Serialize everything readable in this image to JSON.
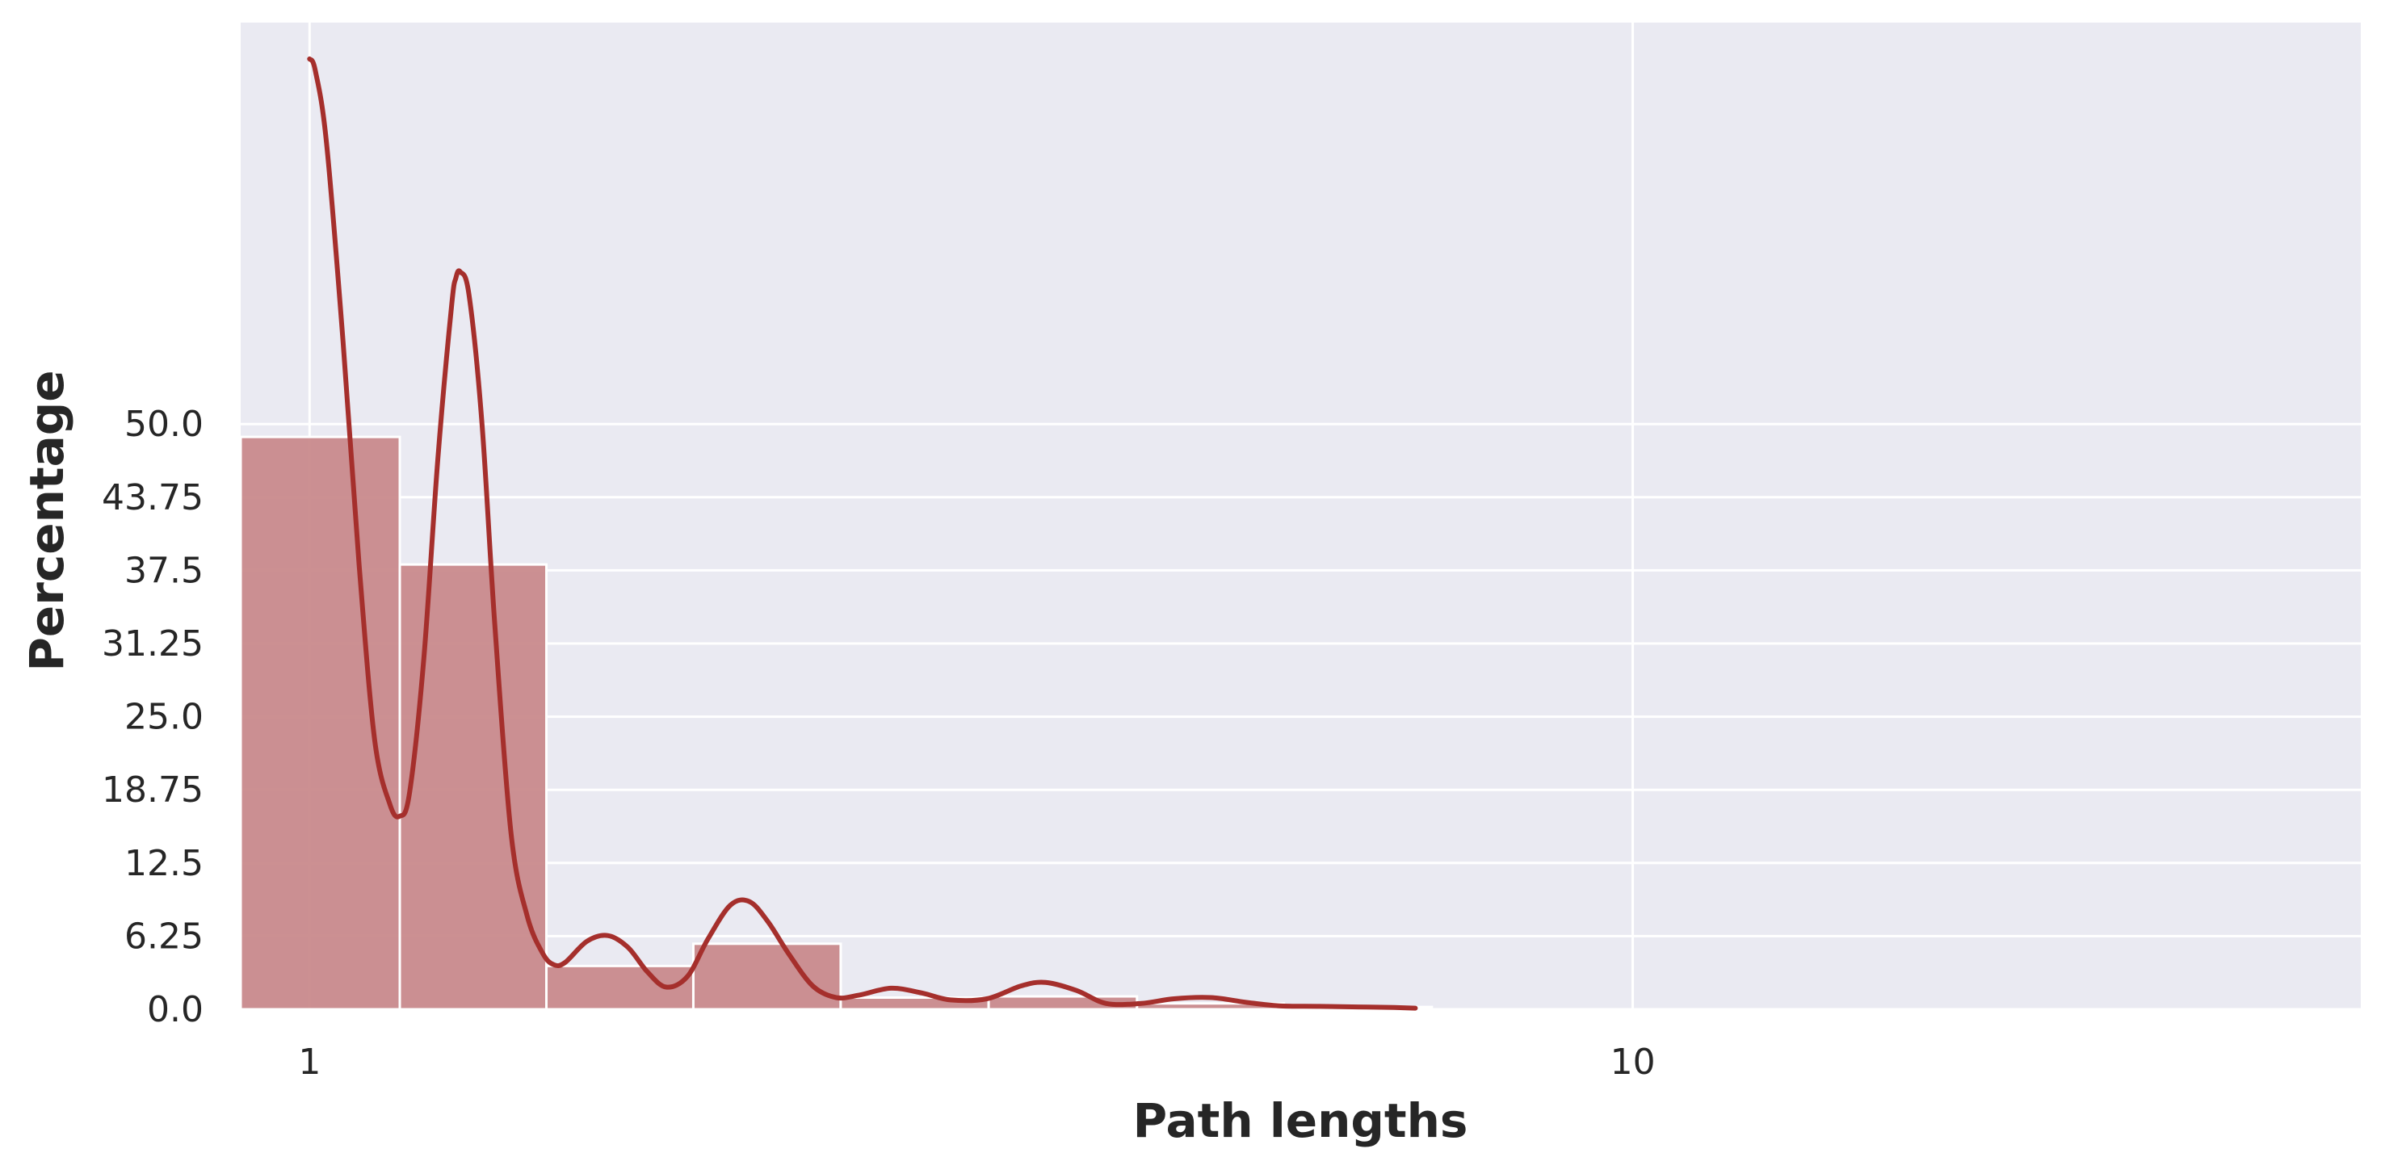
{
  "chart_data": {
    "type": "bar",
    "xlabel": "Path lengths",
    "ylabel": "Percentage",
    "x_scale": "log",
    "xlim": [
      0.887,
      35.5
    ],
    "ylim": [
      0,
      84.3
    ],
    "x_ticks": [
      {
        "value": 1,
        "label": "1"
      },
      {
        "value": 10,
        "label": "10"
      }
    ],
    "y_ticks": [
      {
        "value": 0,
        "label": "0.0"
      },
      {
        "value": 6.25,
        "label": "6.25"
      },
      {
        "value": 12.5,
        "label": "12.5"
      },
      {
        "value": 18.75,
        "label": "18.75"
      },
      {
        "value": 25,
        "label": "25.0"
      },
      {
        "value": 31.25,
        "label": "31.25"
      },
      {
        "value": 37.5,
        "label": "37.5"
      },
      {
        "value": 43.75,
        "label": "43.75"
      },
      {
        "value": 50,
        "label": "50.0"
      }
    ],
    "grid": true,
    "bars": [
      {
        "x0": 0.887,
        "x1": 1.17,
        "value": 48.9
      },
      {
        "x0": 1.17,
        "x1": 1.51,
        "value": 38.0
      },
      {
        "x0": 1.51,
        "x1": 1.95,
        "value": 3.7
      },
      {
        "x0": 1.95,
        "x1": 2.52,
        "value": 5.6
      },
      {
        "x0": 2.52,
        "x1": 3.26,
        "value": 1.0
      },
      {
        "x0": 3.26,
        "x1": 4.22,
        "value": 1.1
      },
      {
        "x0": 4.22,
        "x1": 5.45,
        "value": 0.5
      },
      {
        "x0": 5.45,
        "x1": 7.05,
        "value": 0.2
      }
    ],
    "kde": {
      "x": [
        1.0,
        1.01,
        1.03,
        1.06,
        1.09,
        1.12,
        1.15,
        1.17,
        1.19,
        1.22,
        1.25,
        1.28,
        1.29,
        1.3,
        1.32,
        1.35,
        1.38,
        1.42,
        1.46,
        1.5,
        1.53,
        1.56,
        1.62,
        1.68,
        1.74,
        1.8,
        1.86,
        1.93,
        2.0,
        2.08,
        2.15,
        2.22,
        2.3,
        2.4,
        2.5,
        2.6,
        2.75,
        2.9,
        3.05,
        3.25,
        3.45,
        3.6,
        3.8,
        4.0,
        4.25,
        4.5,
        4.8,
        5.1,
        5.4,
        5.8,
        6.2,
        6.6,
        6.85
      ],
      "y": [
        81.2,
        80.2,
        74.0,
        57.0,
        38.0,
        23.0,
        17.5,
        16.5,
        18.5,
        30.0,
        47.0,
        60.0,
        62.5,
        63.0,
        61.0,
        50.0,
        33.0,
        15.0,
        8.0,
        4.8,
        3.8,
        4.0,
        5.8,
        6.3,
        5.3,
        3.2,
        1.9,
        2.8,
        6.0,
        8.9,
        9.2,
        7.5,
        4.8,
        2.0,
        1.0,
        1.2,
        1.8,
        1.4,
        0.8,
        0.9,
        2.0,
        2.3,
        1.6,
        0.5,
        0.5,
        0.9,
        1.0,
        0.6,
        0.3,
        0.25,
        0.2,
        0.15,
        0.1
      ]
    },
    "colors": {
      "background": "#eaeaf2",
      "grid": "#ffffff",
      "bar_fill": "#c98a8c",
      "bar_edge": "#ffffff",
      "kde_line": "#a52f2c"
    }
  }
}
